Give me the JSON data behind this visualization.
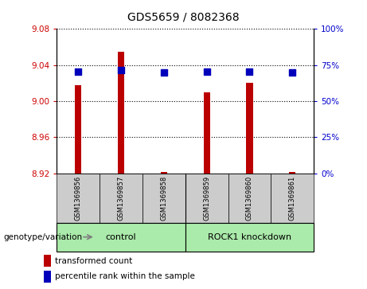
{
  "title": "GDS5659 / 8082368",
  "samples": [
    "GSM1369856",
    "GSM1369857",
    "GSM1369858",
    "GSM1369859",
    "GSM1369860",
    "GSM1369861"
  ],
  "transformed_count": [
    9.018,
    9.055,
    8.922,
    9.01,
    9.02,
    8.922
  ],
  "percentile_rank": [
    70.5,
    71.5,
    70,
    70.5,
    70.5,
    70
  ],
  "ylim_left": [
    8.92,
    9.08
  ],
  "ylim_right": [
    0,
    100
  ],
  "yticks_left": [
    8.92,
    8.96,
    9.0,
    9.04,
    9.08
  ],
  "yticks_right": [
    0,
    25,
    50,
    75,
    100
  ],
  "bar_color": "#bb0000",
  "dot_color": "#0000bb",
  "dot_size": 30,
  "bar_width": 0.15,
  "groups": [
    {
      "label": "control",
      "start": 0,
      "end": 2,
      "color": "#aaeaaa"
    },
    {
      "label": "ROCK1 knockdown",
      "start": 3,
      "end": 5,
      "color": "#aaeaaa"
    }
  ],
  "group_row_label": "genotype/variation",
  "legend_items": [
    {
      "label": "transformed count",
      "color": "#bb0000"
    },
    {
      "label": "percentile rank within the sample",
      "color": "#0000bb"
    }
  ],
  "tick_label_color_left": "#cc0000",
  "tick_label_color_right": "#0000cc",
  "sample_box_color": "#cccccc",
  "plot_bg": "#ffffff"
}
